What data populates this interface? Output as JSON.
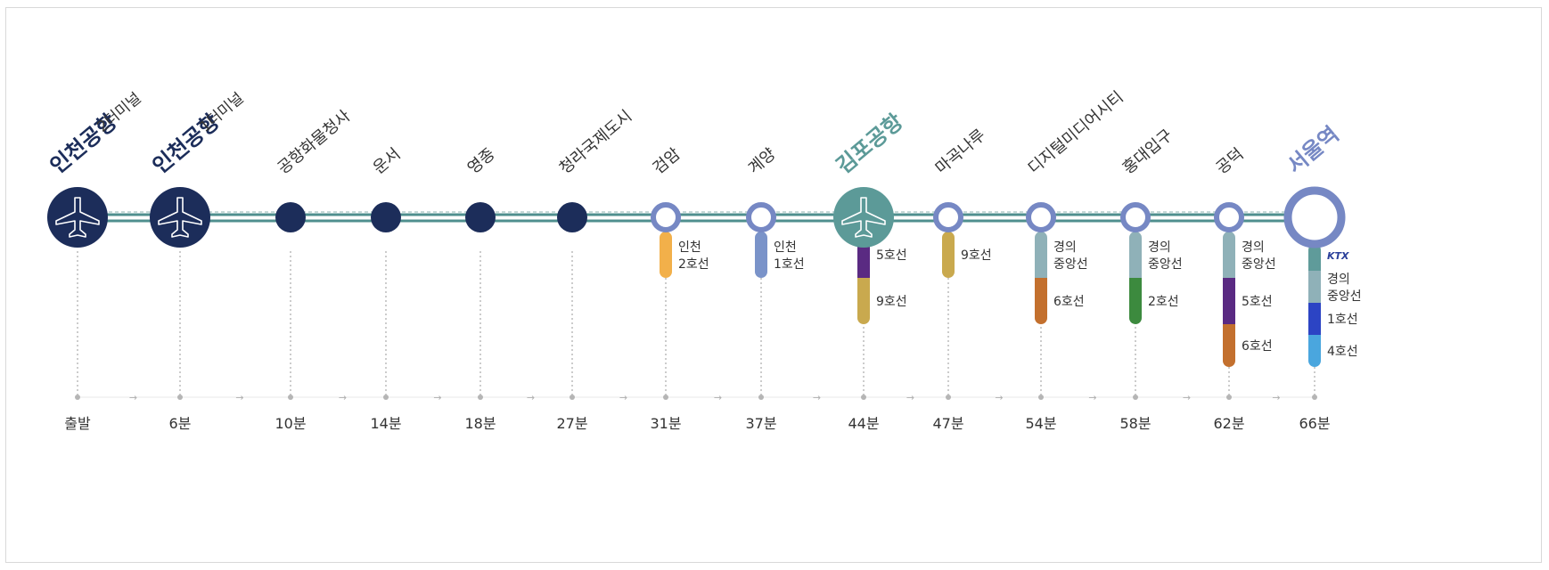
{
  "colors": {
    "navy": "#1c2d5a",
    "teal": "#4f8f8e",
    "teal_dark": "#3f7f7e",
    "gimpo": "#5c9a98",
    "seoul": "#7688c4",
    "text": "#333333",
    "dot": "#b5b5b5"
  },
  "stations": [
    {
      "name": "인천공항",
      "sub": "2터미널",
      "time": "출발",
      "kind": "airport",
      "emph": "navy"
    },
    {
      "name": "인천공항",
      "sub": "1터미널",
      "time": "6분",
      "kind": "airport",
      "emph": "navy"
    },
    {
      "name": "공항화물청사",
      "time": "10분",
      "kind": "filled"
    },
    {
      "name": "운서",
      "time": "14분",
      "kind": "filled"
    },
    {
      "name": "영종",
      "time": "18분",
      "kind": "filled"
    },
    {
      "name": "청라국제도시",
      "time": "27분",
      "kind": "filled"
    },
    {
      "name": "검암",
      "time": "31분",
      "kind": "hollow",
      "transfers": [
        {
          "label": "인천\n2호선",
          "color": "#f2b04a"
        }
      ]
    },
    {
      "name": "계양",
      "time": "37분",
      "kind": "hollow",
      "transfers": [
        {
          "label": "인천\n1호선",
          "color": "#7a93c9"
        }
      ]
    },
    {
      "name": "김포공항",
      "time": "44분",
      "kind": "airport-teal",
      "emph": "teal",
      "transfers": [
        {
          "label": "5호선",
          "color": "#5a2a82"
        },
        {
          "label": "9호선",
          "color": "#c9a94e"
        }
      ]
    },
    {
      "name": "마곡나루",
      "time": "47분",
      "kind": "hollow",
      "transfers": [
        {
          "label": "9호선",
          "color": "#c9a94e"
        }
      ]
    },
    {
      "name": "디지털미디어시티",
      "time": "54분",
      "kind": "hollow",
      "transfers": [
        {
          "label": "경의\n중앙선",
          "color": "#8fb1b8"
        },
        {
          "label": "6호선",
          "color": "#c3702e"
        }
      ]
    },
    {
      "name": "홍대입구",
      "time": "58분",
      "kind": "hollow",
      "transfers": [
        {
          "label": "경의\n중앙선",
          "color": "#8fb1b8"
        },
        {
          "label": "2호선",
          "color": "#3c8a3e"
        }
      ]
    },
    {
      "name": "공덕",
      "time": "62분",
      "kind": "hollow",
      "transfers": [
        {
          "label": "경의\n중앙선",
          "color": "#8fb1b8"
        },
        {
          "label": "5호선",
          "color": "#5a2a82"
        },
        {
          "label": "6호선",
          "color": "#c3702e"
        }
      ]
    },
    {
      "name": "서울역",
      "time": "66분",
      "kind": "seoul",
      "emph": "seoul",
      "transfers": [
        {
          "label": "KTX",
          "color": "#5f9b9a",
          "logo": true
        },
        {
          "label": "경의\n중앙선",
          "color": "#8fb1b8"
        },
        {
          "label": "1호선",
          "color": "#2c44c4"
        },
        {
          "label": "4호선",
          "color": "#4aa6de"
        }
      ]
    }
  ]
}
